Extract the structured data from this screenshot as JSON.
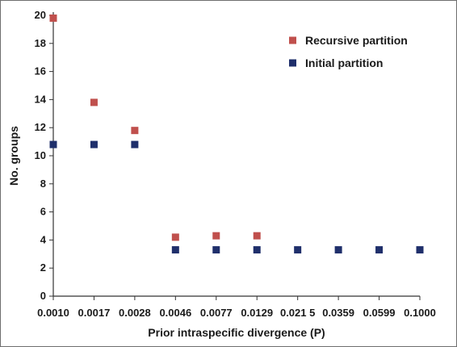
{
  "chart_data": {
    "type": "scatter",
    "xlabel": "Prior intraspecific  divergence (P)",
    "ylabel": "No. groups",
    "x_tick_labels": [
      "0.0010",
      "0.0017",
      "0.0028",
      "0.0046",
      "0.0077",
      "0.0129",
      "0.021 5",
      "0.0359",
      "0.0599",
      "0.1000"
    ],
    "y_ticks": [
      0,
      2,
      4,
      6,
      8,
      10,
      12,
      14,
      16,
      18,
      20
    ],
    "ylim": [
      0,
      20
    ],
    "grid": false,
    "legend_position": "top-right",
    "series": [
      {
        "name": "Recursive partition",
        "color": "#c0504d",
        "x": [
          "0.0010",
          "0.0017",
          "0.0028",
          "0.0046",
          "0.0077",
          "0.0129"
        ],
        "values": [
          19.8,
          13.8,
          11.8,
          4.2,
          4.3,
          4.3
        ]
      },
      {
        "name": "Initial partition",
        "color": "#1f2f6b",
        "x": [
          "0.0010",
          "0.0017",
          "0.0028",
          "0.0046",
          "0.0077",
          "0.0129",
          "0.021 5",
          "0.0359",
          "0.0599",
          "0.1000"
        ],
        "values": [
          10.8,
          10.8,
          10.8,
          3.3,
          3.3,
          3.3,
          3.3,
          3.3,
          3.3,
          3.3
        ]
      }
    ]
  }
}
